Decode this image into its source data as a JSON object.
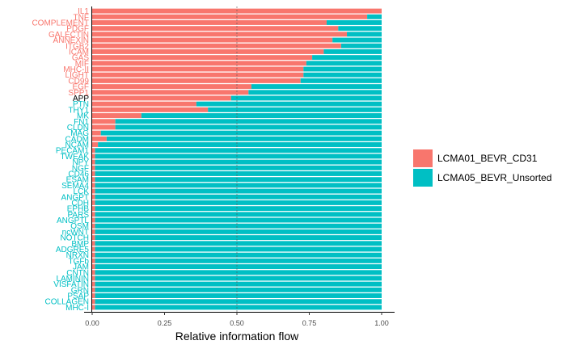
{
  "chart_data": {
    "type": "bar",
    "orientation": "horizontal",
    "stacked": true,
    "xlabel": "Relative information flow",
    "ylabel": "",
    "title": "",
    "xlim": [
      0,
      1
    ],
    "xticks": [
      "0.00",
      "0.25",
      "0.50",
      "0.75",
      "1.00"
    ],
    "xtick_values": [
      0,
      0.25,
      0.5,
      0.75,
      1.0
    ],
    "reference_line": 0.5,
    "legend_position": "right",
    "colors": {
      "LCMA01_BEVR_CD31": "#F8766D",
      "LCMA05_BEVR_Unsorted": "#00BFC4",
      "neutral_label": "#000000"
    },
    "categories": [
      "IL1",
      "TNF",
      "COMPLEMENT",
      "PDGF",
      "GALECTIN",
      "ANNEXIN",
      "ITGB2",
      "ICAM",
      "GAS",
      "MIF",
      "MHC-II",
      "LIGHT",
      "CD99",
      "EGF",
      "SPP1",
      "APP",
      "PTN",
      "THY1",
      "MK",
      "FN1",
      "CLDN",
      "MAG",
      "CADM",
      "NCAM",
      "PECAM1",
      "TWEAK",
      "NPY",
      "NGF",
      "CD46",
      "ESAM",
      "SEMA4",
      "LCK",
      "ANGPT",
      "CDH",
      "EPHB",
      "PARS",
      "ANGPTL",
      "OSM",
      "ncWNT",
      "NOTCH",
      "BMP",
      "ADGRE5",
      "NRXN",
      "TGFb",
      "JAM",
      "CNTN",
      "LAMININ",
      "VISFATIN",
      "GRN",
      "PSAP",
      "COLLAGEN",
      "MHC-I"
    ],
    "label_groups": [
      "LCMA01_BEVR_CD31",
      "LCMA01_BEVR_CD31",
      "LCMA01_BEVR_CD31",
      "LCMA01_BEVR_CD31",
      "LCMA01_BEVR_CD31",
      "LCMA01_BEVR_CD31",
      "LCMA01_BEVR_CD31",
      "LCMA01_BEVR_CD31",
      "LCMA01_BEVR_CD31",
      "LCMA01_BEVR_CD31",
      "LCMA01_BEVR_CD31",
      "LCMA01_BEVR_CD31",
      "LCMA01_BEVR_CD31",
      "LCMA01_BEVR_CD31",
      "LCMA01_BEVR_CD31",
      "neutral",
      "LCMA05_BEVR_Unsorted",
      "LCMA05_BEVR_Unsorted",
      "LCMA05_BEVR_Unsorted",
      "LCMA05_BEVR_Unsorted",
      "LCMA05_BEVR_Unsorted",
      "LCMA05_BEVR_Unsorted",
      "LCMA05_BEVR_Unsorted",
      "LCMA05_BEVR_Unsorted",
      "LCMA05_BEVR_Unsorted",
      "LCMA05_BEVR_Unsorted",
      "LCMA05_BEVR_Unsorted",
      "LCMA05_BEVR_Unsorted",
      "LCMA05_BEVR_Unsorted",
      "LCMA05_BEVR_Unsorted",
      "LCMA05_BEVR_Unsorted",
      "LCMA05_BEVR_Unsorted",
      "LCMA05_BEVR_Unsorted",
      "LCMA05_BEVR_Unsorted",
      "LCMA05_BEVR_Unsorted",
      "LCMA05_BEVR_Unsorted",
      "LCMA05_BEVR_Unsorted",
      "LCMA05_BEVR_Unsorted",
      "LCMA05_BEVR_Unsorted",
      "LCMA05_BEVR_Unsorted",
      "LCMA05_BEVR_Unsorted",
      "LCMA05_BEVR_Unsorted",
      "LCMA05_BEVR_Unsorted",
      "LCMA05_BEVR_Unsorted",
      "LCMA05_BEVR_Unsorted",
      "LCMA05_BEVR_Unsorted",
      "LCMA05_BEVR_Unsorted",
      "LCMA05_BEVR_Unsorted",
      "LCMA05_BEVR_Unsorted",
      "LCMA05_BEVR_Unsorted",
      "LCMA05_BEVR_Unsorted",
      "LCMA05_BEVR_Unsorted"
    ],
    "series": [
      {
        "name": "LCMA01_BEVR_CD31",
        "values": [
          1.0,
          0.95,
          0.81,
          0.85,
          0.88,
          0.83,
          0.86,
          0.8,
          0.76,
          0.74,
          0.73,
          0.73,
          0.72,
          0.55,
          0.54,
          0.48,
          0.36,
          0.4,
          0.17,
          0.08,
          0.08,
          0.03,
          0.05,
          0.02,
          0.01,
          0.01,
          0.01,
          0.01,
          0.01,
          0.01,
          0.01,
          0.01,
          0.01,
          0.01,
          0.01,
          0.01,
          0.01,
          0.01,
          0.01,
          0.01,
          0.01,
          0.01,
          0.01,
          0.01,
          0.01,
          0.01,
          0.01,
          0.01,
          0.01,
          0.01,
          0.01,
          0.01
        ]
      },
      {
        "name": "LCMA05_BEVR_Unsorted",
        "values": [
          0.0,
          0.05,
          0.19,
          0.15,
          0.12,
          0.17,
          0.14,
          0.2,
          0.24,
          0.26,
          0.27,
          0.27,
          0.28,
          0.45,
          0.46,
          0.52,
          0.64,
          0.6,
          0.83,
          0.92,
          0.92,
          0.97,
          0.95,
          0.98,
          0.99,
          0.99,
          0.99,
          0.99,
          0.99,
          0.99,
          0.99,
          0.99,
          0.99,
          0.99,
          0.99,
          0.99,
          0.99,
          0.99,
          0.99,
          0.99,
          0.99,
          0.99,
          0.99,
          0.99,
          0.99,
          0.99,
          0.99,
          0.99,
          0.99,
          0.99,
          0.99,
          0.99
        ]
      }
    ]
  }
}
